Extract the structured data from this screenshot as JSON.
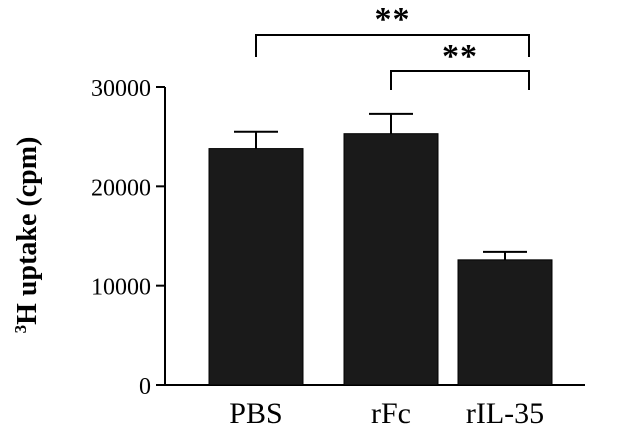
{
  "chart_data": {
    "type": "bar",
    "categories": [
      "PBS",
      "rFc",
      "rIL-35"
    ],
    "values": [
      23800,
      25300,
      12600
    ],
    "errors": [
      1700,
      2000,
      800
    ],
    "ylabel": "3H uptake (cpm)",
    "ylabel_superscript": "3",
    "ylabel_main": "H uptake (cpm)",
    "ylim": [
      0,
      30000
    ],
    "yticks": [
      0,
      10000,
      20000,
      30000
    ],
    "ytick_labels": [
      "0",
      "10000",
      "20000",
      "30000"
    ],
    "grid": false,
    "bar_color": "#1a1a1a",
    "significance": [
      {
        "from": "PBS",
        "to": "rIL-35",
        "label": "**"
      },
      {
        "from": "rFc",
        "to": "rIL-35",
        "label": "**"
      }
    ]
  }
}
